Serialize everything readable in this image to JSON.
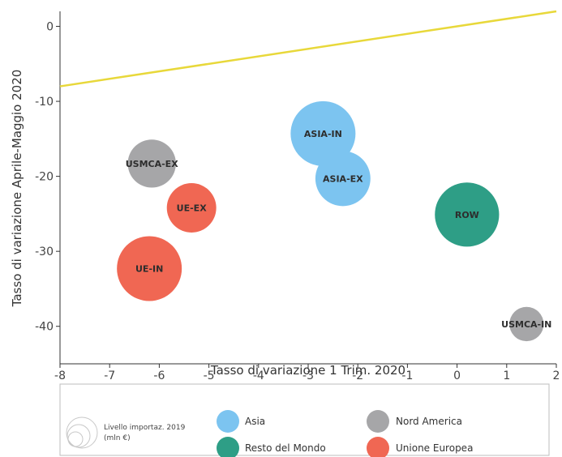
{
  "chart_data": {
    "type": "scatter",
    "xlabel": "Tasso di variazione 1 Trim. 2020",
    "ylabel": "Tasso di variazione Aprile-Maggio 2020",
    "xlim": [
      -8,
      2
    ],
    "ylim": [
      -45,
      2
    ],
    "x_ticks": [
      -8,
      -7,
      -6,
      -5,
      -4,
      -3,
      -2,
      -1,
      0,
      1,
      2
    ],
    "y_ticks": [
      0,
      -10,
      -20,
      -30,
      -40
    ],
    "grid": false,
    "reference_line": {
      "x": [
        -8,
        2
      ],
      "y": [
        -8,
        2
      ],
      "color": "#e8d83a"
    },
    "points": [
      {
        "label": "ASIA-IN",
        "x": -2.7,
        "y": -14.3,
        "group": "Asia",
        "size": 1.0
      },
      {
        "label": "ASIA-EX",
        "x": -2.3,
        "y": -20.3,
        "group": "Asia",
        "size": 0.72
      },
      {
        "label": "USMCA-EX",
        "x": -6.15,
        "y": -18.3,
        "group": "Nord America",
        "size": 0.55
      },
      {
        "label": "UE-EX",
        "x": -5.35,
        "y": -24.2,
        "group": "Unione Europea",
        "size": 0.58
      },
      {
        "label": "UE-IN",
        "x": -6.2,
        "y": -32.3,
        "group": "Unione Europea",
        "size": 1.0
      },
      {
        "label": "ROW",
        "x": 0.2,
        "y": -25.1,
        "group": "Resto del Mondo",
        "size": 0.98
      },
      {
        "label": "USMCA-IN",
        "x": 1.4,
        "y": -39.7,
        "group": "Nord America",
        "size": 0.28
      }
    ],
    "legend": {
      "placement": "bottom",
      "size_title_line1": "Livello importaz. 2019",
      "size_title_line2": "(mln €)",
      "entries": [
        {
          "name": "Asia",
          "color": "#7cc4f0"
        },
        {
          "name": "Nord America",
          "color": "#a6a6a8"
        },
        {
          "name": "Resto del Mondo",
          "color": "#2e9e86"
        },
        {
          "name": "Unione Europea",
          "color": "#f06753"
        }
      ]
    }
  }
}
